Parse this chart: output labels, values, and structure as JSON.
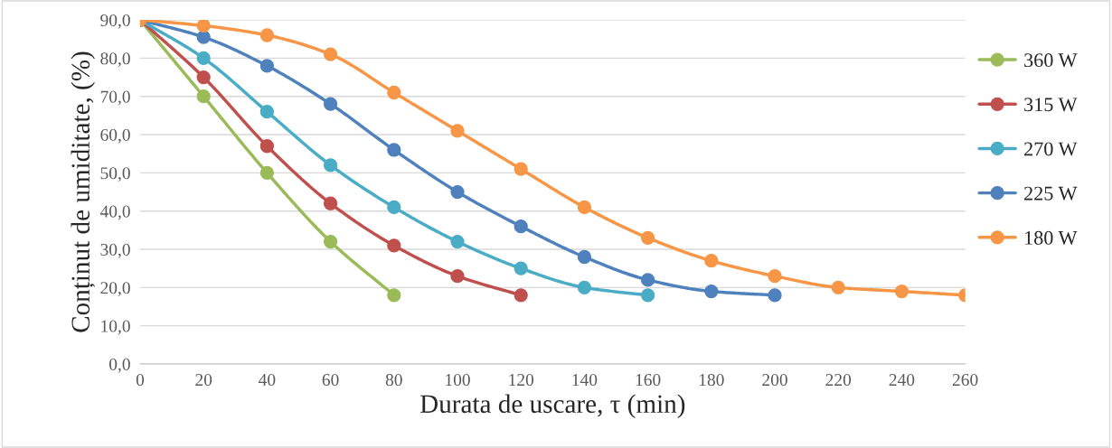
{
  "chart_data": {
    "type": "line",
    "xlabel": "Durata de uscare, τ (min)",
    "ylabel": "Conținut de umiditate, (%)",
    "xlim": [
      0,
      260
    ],
    "xticks": [
      0,
      20,
      40,
      60,
      80,
      100,
      120,
      140,
      160,
      180,
      200,
      220,
      240,
      260
    ],
    "ylim": [
      0,
      90
    ],
    "yticks": [
      {
        "value": 0,
        "label": "0,0"
      },
      {
        "value": 10,
        "label": "10,0"
      },
      {
        "value": 20,
        "label": "20,0"
      },
      {
        "value": 30,
        "label": "30,0"
      },
      {
        "value": 40,
        "label": "40,0"
      },
      {
        "value": 50,
        "label": "50,0"
      },
      {
        "value": 60,
        "label": "60,0"
      },
      {
        "value": 70,
        "label": "70,0"
      },
      {
        "value": 80,
        "label": "80,0"
      },
      {
        "value": 90,
        "label": "90,0"
      }
    ],
    "grid": "y",
    "legend": "right",
    "marker": "circle",
    "line_style": "solid",
    "series": [
      {
        "name": "360 W",
        "color": "#9bbb59",
        "x": [
          0,
          20,
          40,
          60,
          80
        ],
        "values": [
          90,
          70,
          50,
          32,
          18
        ]
      },
      {
        "name": "315 W",
        "color": "#c0504d",
        "x": [
          0,
          20,
          40,
          60,
          80,
          100,
          120
        ],
        "values": [
          90,
          75,
          57,
          42,
          31,
          23,
          18
        ]
      },
      {
        "name": "270 W",
        "color": "#4bacc6",
        "x": [
          0,
          20,
          40,
          60,
          80,
          100,
          120,
          140,
          160
        ],
        "values": [
          90,
          80,
          66,
          52,
          41,
          32,
          25,
          20,
          18
        ]
      },
      {
        "name": "225 W",
        "color": "#4f81bd",
        "x": [
          0,
          20,
          40,
          60,
          80,
          100,
          120,
          140,
          160,
          180,
          200
        ],
        "values": [
          90,
          85.5,
          78,
          68,
          56,
          45,
          36,
          28,
          22,
          19,
          18
        ]
      },
      {
        "name": "180 W",
        "color": "#f79646",
        "x": [
          0,
          20,
          40,
          60,
          80,
          100,
          120,
          140,
          160,
          180,
          200,
          220,
          240,
          260
        ],
        "values": [
          90,
          88.5,
          86,
          81,
          71,
          61,
          51,
          41,
          33,
          27,
          23,
          20,
          19,
          18
        ]
      }
    ]
  }
}
